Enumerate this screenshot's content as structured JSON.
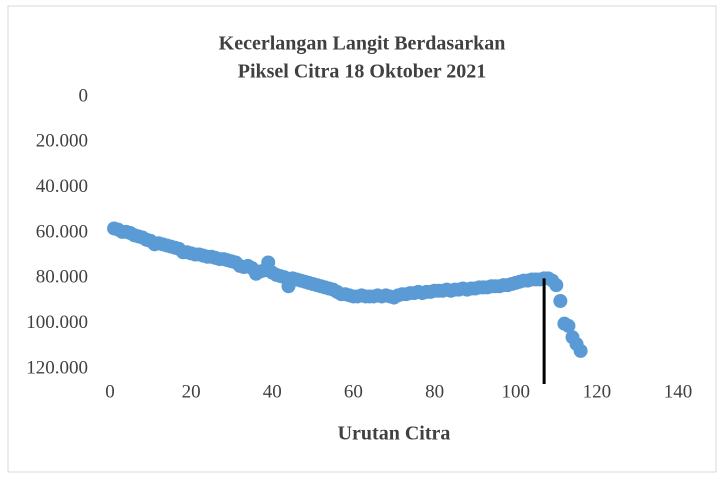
{
  "chart_data": {
    "type": "scatter",
    "title": [
      "Kecerlangan Langit Berdasarkan",
      "Piksel Citra 18 Oktober 2021"
    ],
    "x_label": "Urutan Citra",
    "color": "#5b9bd5",
    "x": [
      1,
      2,
      3,
      4,
      5,
      6,
      7,
      8,
      9,
      10,
      11,
      12,
      13,
      14,
      15,
      16,
      17,
      18,
      19,
      20,
      21,
      22,
      23,
      24,
      25,
      26,
      27,
      28,
      29,
      30,
      31,
      32,
      33,
      34,
      35,
      36,
      37,
      38,
      39,
      40,
      41,
      42,
      43,
      44,
      45,
      46,
      47,
      48,
      49,
      50,
      51,
      52,
      53,
      54,
      55,
      56,
      57,
      58,
      59,
      60,
      61,
      62,
      63,
      64,
      65,
      66,
      67,
      68,
      69,
      70,
      71,
      72,
      73,
      74,
      75,
      76,
      77,
      78,
      79,
      80,
      81,
      82,
      83,
      84,
      85,
      86,
      87,
      88,
      89,
      90,
      91,
      92,
      93,
      94,
      95,
      96,
      97,
      98,
      99,
      100,
      101,
      102,
      103,
      104,
      105,
      106,
      107,
      108,
      109,
      110,
      111,
      112,
      113,
      114,
      115,
      116
    ],
    "values": [
      58000,
      58500,
      59500,
      59500,
      60000,
      61000,
      61500,
      62000,
      63000,
      63500,
      65000,
      64500,
      65000,
      65500,
      66000,
      66500,
      67000,
      68500,
      68500,
      69000,
      69500,
      69500,
      70000,
      70500,
      70500,
      71000,
      71500,
      71500,
      72000,
      72500,
      73000,
      74500,
      75000,
      74500,
      75500,
      78000,
      77000,
      76500,
      73000,
      77500,
      78500,
      79000,
      79500,
      83500,
      80000,
      80500,
      81000,
      81500,
      82000,
      82500,
      83000,
      83500,
      84000,
      84500,
      85000,
      86000,
      87000,
      87000,
      87500,
      88000,
      88000,
      87500,
      88000,
      88000,
      88000,
      87500,
      88000,
      87500,
      88000,
      88500,
      87500,
      87000,
      87000,
      86500,
      86500,
      86000,
      86500,
      86000,
      86000,
      85500,
      85500,
      85500,
      85000,
      85500,
      85000,
      85000,
      84500,
      85000,
      84500,
      84500,
      84000,
      84000,
      84000,
      83500,
      83500,
      83500,
      83000,
      83000,
      82500,
      82000,
      81500,
      81000,
      81000,
      80500,
      80500,
      80500,
      80000,
      80000,
      81000,
      83000,
      90000,
      100000,
      101000,
      106000,
      109000,
      112000
    ],
    "xlim": [
      0,
      140
    ],
    "xticks": [
      0,
      20,
      40,
      60,
      80,
      100,
      120,
      140
    ],
    "ylim": [
      0,
      120000
    ],
    "y_inverted": true,
    "yticks": [
      0,
      {
        "value": 20000,
        "label": "20.000"
      },
      {
        "value": 40000,
        "label": "40.000"
      },
      {
        "value": 60000,
        "label": "60.000"
      },
      {
        "value": 80000,
        "label": "80.000"
      },
      {
        "value": 100000,
        "label": "100.000"
      },
      {
        "value": 120000,
        "label": "120.000"
      }
    ],
    "vline": {
      "x": 107,
      "y_top": 80000,
      "color": "#000000"
    }
  }
}
